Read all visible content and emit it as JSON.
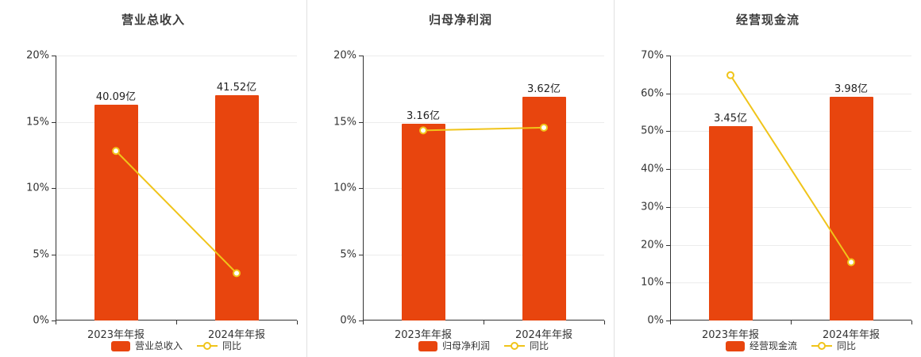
{
  "page": {
    "background": "#ffffff"
  },
  "colors": {
    "bar": "#e8450e",
    "line": "#f0c41a",
    "axis": "#333333",
    "gridline": "#ececec",
    "divider": "#e0e0e0",
    "title_text": "#3c3c3c",
    "label_text": "#333333",
    "marker_fill": "#ffffff"
  },
  "chart_data": [
    {
      "type": "bar+line",
      "title": "营业总收入",
      "categories": [
        "2023年年报",
        "2024年年报"
      ],
      "ylim": [
        0,
        20
      ],
      "yticks_pct": [
        0,
        5,
        10,
        15,
        20
      ],
      "grid": true,
      "legend_position": "bottom",
      "bar_series": {
        "name": "营业总收入",
        "value_labels": [
          "40.09亿",
          "41.52亿"
        ],
        "display_pct": [
          16.3,
          17.0
        ]
      },
      "line_series": {
        "name": "同比",
        "values_pct": [
          12.8,
          3.57
        ]
      }
    },
    {
      "type": "bar+line",
      "title": "归母净利润",
      "categories": [
        "2023年年报",
        "2024年年报"
      ],
      "ylim": [
        0,
        20
      ],
      "yticks_pct": [
        0,
        5,
        10,
        15,
        20
      ],
      "grid": true,
      "legend_position": "bottom",
      "bar_series": {
        "name": "归母净利润",
        "value_labels": [
          "3.16亿",
          "3.62亿"
        ],
        "display_pct": [
          14.85,
          16.9
        ]
      },
      "line_series": {
        "name": "同比",
        "values_pct": [
          14.35,
          14.56
        ]
      }
    },
    {
      "type": "bar+line",
      "title": "经营现金流",
      "categories": [
        "2023年年报",
        "2024年年报"
      ],
      "ylim": [
        0,
        70
      ],
      "yticks_pct": [
        0,
        10,
        20,
        30,
        40,
        50,
        60,
        70
      ],
      "grid": true,
      "legend_position": "bottom",
      "bar_series": {
        "name": "经营现金流",
        "value_labels": [
          "3.45亿",
          "3.98亿"
        ],
        "display_pct": [
          51.3,
          59.2
        ]
      },
      "line_series": {
        "name": "同比",
        "values_pct": [
          64.8,
          15.4
        ]
      }
    }
  ]
}
